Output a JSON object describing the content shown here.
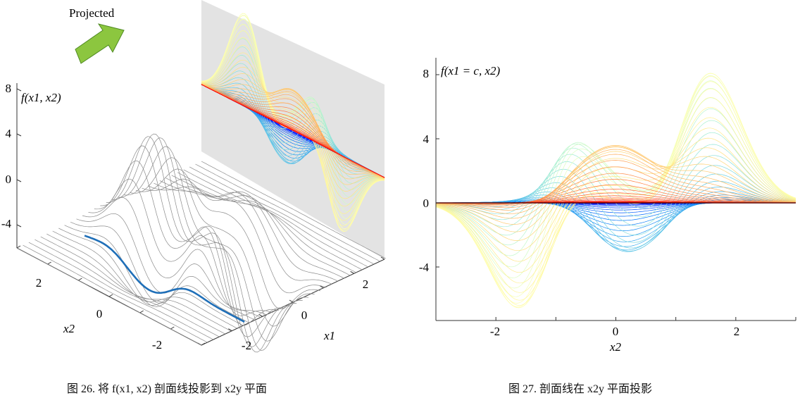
{
  "captions": {
    "left": "图 26. 将 f(x1, x2) 剖面线投影到 x2y 平面",
    "right": "图 27. 剖面线在 x2y 平面投影"
  },
  "chart_data": [
    {
      "type": "line",
      "view": "3d-surface-profiles",
      "annotation": "Projected",
      "function_label": "f(x1, x2)",
      "xlabel": "x1",
      "ylabel": "x2",
      "zticks": [
        -4,
        0,
        4,
        8
      ],
      "x1_ticks": [
        -2,
        0,
        2
      ],
      "x2_ticks": [
        -2,
        0,
        2
      ],
      "x1_range": [
        -3,
        3
      ],
      "x2_range": [
        -3,
        3
      ],
      "z_range": [
        -6.6,
        8.1
      ],
      "highlighted_profile_x1": -1.5,
      "profile_count": 60,
      "projection_plane": "x2y",
      "colors": {
        "wire": "#8a8a8a",
        "highlight": "#1f6fb8",
        "plane": "#e3e3e3",
        "arrow": "#8cc63f",
        "arrow_edge": "#4f8a22",
        "colormap": "rainbow"
      }
    },
    {
      "type": "line",
      "title": "f(x1 = c, x2)",
      "xlabel": "x2",
      "ylabel": "",
      "xlim": [
        -3,
        3
      ],
      "ylim": [
        -7,
        9
      ],
      "xticks": [
        -2,
        0,
        2
      ],
      "yticks": [
        -4,
        0,
        4,
        8
      ],
      "profile_count": 60,
      "colormap": "rainbow",
      "peaks": {
        "max": {
          "x2": 1.6,
          "y": 8.1
        },
        "min": {
          "x2": -1.6,
          "y": -6.6
        },
        "local_max": {
          "x2": -0.6,
          "y": 3.8
        },
        "local_min": {
          "x2": 0.2,
          "y": -3.1
        }
      },
      "grid": false,
      "legend": "none"
    }
  ]
}
